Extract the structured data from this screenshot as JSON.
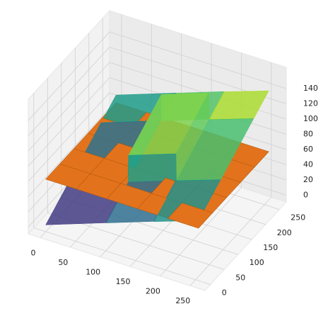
{
  "chart_data": {
    "type": "surface3d",
    "xlim": [
      -20,
      275
    ],
    "ylim": [
      -20,
      275
    ],
    "zlim": [
      -9,
      168
    ],
    "xticks": [
      0,
      50,
      100,
      150,
      200,
      250
    ],
    "yticks": [
      0,
      50,
      100,
      150,
      200,
      250
    ],
    "zticks": [
      0,
      20,
      40,
      60,
      80,
      100,
      120,
      140
    ],
    "grid": true,
    "surfaces": [
      {
        "color": "#e2731c",
        "x": [
          0,
          51,
          102,
          153,
          204,
          255
        ],
        "y": [
          0,
          51,
          102,
          153,
          204,
          255
        ],
        "z": [
          [
            60,
            60,
            60,
            60,
            60,
            60
          ],
          [
            60,
            60,
            60,
            60,
            60,
            60
          ],
          [
            60,
            60,
            60,
            60,
            60,
            60
          ],
          [
            60,
            60,
            60,
            60,
            60,
            60
          ],
          [
            60,
            60,
            60,
            60,
            60,
            60
          ],
          [
            60,
            60,
            60,
            60,
            60,
            60
          ]
        ]
      },
      {
        "colormap": "viridis",
        "x": [
          0,
          100,
          101,
          180,
          181,
          255
        ],
        "y": [
          0,
          80,
          81,
          200,
          201,
          255
        ],
        "z": [
          [
            0,
            28,
            28,
            50,
            50,
            70
          ],
          [
            22,
            50,
            50,
            72,
            72,
            92
          ],
          [
            22,
            50,
            85,
            107,
            72,
            92
          ],
          [
            55,
            83,
            118,
            140,
            105,
            125
          ],
          [
            55,
            83,
            83,
            105,
            105,
            125
          ],
          [
            70,
            98,
            98,
            120,
            120,
            140
          ]
        ]
      }
    ]
  }
}
